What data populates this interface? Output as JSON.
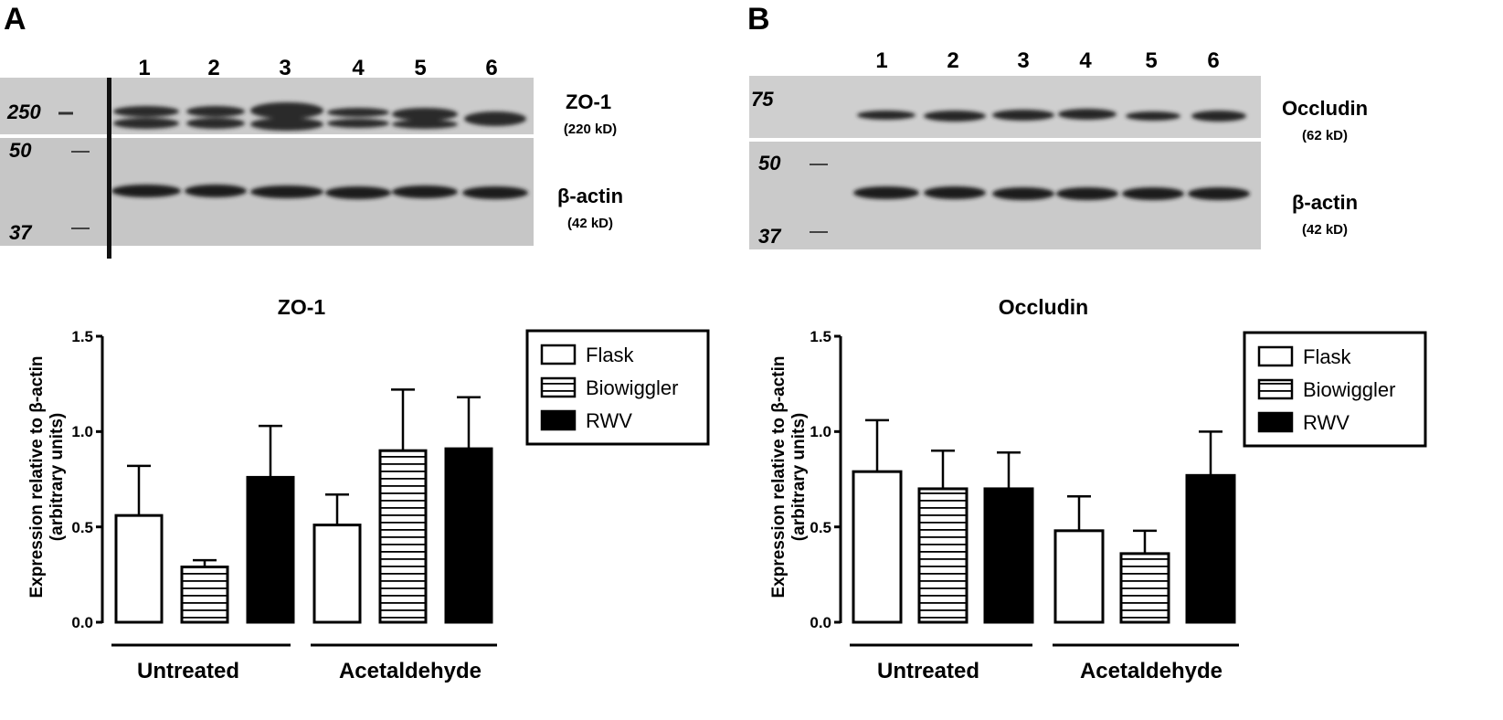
{
  "colors": {
    "axis": "#000000",
    "bar_outline": "#000000",
    "flask_fill": "#ffffff",
    "rwv_fill": "#000000",
    "stripe": "#000000",
    "blot_bg": "#c8c8c8"
  },
  "panels": [
    {
      "letter": "A",
      "blot": {
        "lane_numbers": [
          "1",
          "2",
          "3",
          "4",
          "5",
          "6"
        ],
        "markers_top": [
          "250"
        ],
        "markers_bottom": [
          "50",
          "37"
        ],
        "protein_top": "ZO-1",
        "protein_top_kd": "(220 kD)",
        "protein_bottom": "β-actin",
        "protein_bottom_kd": "(42 kD)"
      }
    },
    {
      "letter": "B",
      "blot": {
        "lane_numbers": [
          "1",
          "2",
          "3",
          "4",
          "5",
          "6"
        ],
        "markers_top": [
          "75"
        ],
        "markers_bottom": [
          "50",
          "37"
        ],
        "protein_top": "Occludin",
        "protein_top_kd": "(62 kD)",
        "protein_bottom": "β-actin",
        "protein_bottom_kd": "(42 kD)"
      }
    }
  ],
  "chart_data": [
    {
      "type": "bar",
      "title": "ZO-1",
      "ylabel_line1": "Expression relative to β-actin",
      "ylabel_line2": "(arbitrary units)",
      "ylim": [
        0,
        1.5
      ],
      "yticks": [
        "0.0",
        "0.5",
        "1.0",
        "1.5"
      ],
      "groups": [
        "Untreated",
        "Acetaldehyde"
      ],
      "legend_position": "top-right",
      "series": [
        {
          "name": "Flask",
          "pattern": "open",
          "values": [
            0.56,
            0.51
          ],
          "errors": [
            0.26,
            0.16
          ]
        },
        {
          "name": "Biowiggler",
          "pattern": "horizontal-stripes",
          "values": [
            0.29,
            0.9
          ],
          "errors": [
            0.035,
            0.32
          ]
        },
        {
          "name": "RWV",
          "pattern": "solid",
          "values": [
            0.76,
            0.91
          ],
          "errors": [
            0.27,
            0.27
          ]
        }
      ]
    },
    {
      "type": "bar",
      "title": "Occludin",
      "ylabel_line1": "Expression relative to β-actin",
      "ylabel_line2": "(arbitrary units)",
      "ylim": [
        0,
        1.5
      ],
      "yticks": [
        "0.0",
        "0.5",
        "1.0",
        "1.5"
      ],
      "groups": [
        "Untreated",
        "Acetaldehyde"
      ],
      "legend_position": "top-right",
      "series": [
        {
          "name": "Flask",
          "pattern": "open",
          "values": [
            0.79,
            0.48
          ],
          "errors": [
            0.27,
            0.18
          ]
        },
        {
          "name": "Biowiggler",
          "pattern": "horizontal-stripes",
          "values": [
            0.7,
            0.36
          ],
          "errors": [
            0.2,
            0.12
          ]
        },
        {
          "name": "RWV",
          "pattern": "solid",
          "values": [
            0.7,
            0.77
          ],
          "errors": [
            0.19,
            0.23
          ]
        }
      ]
    }
  ]
}
